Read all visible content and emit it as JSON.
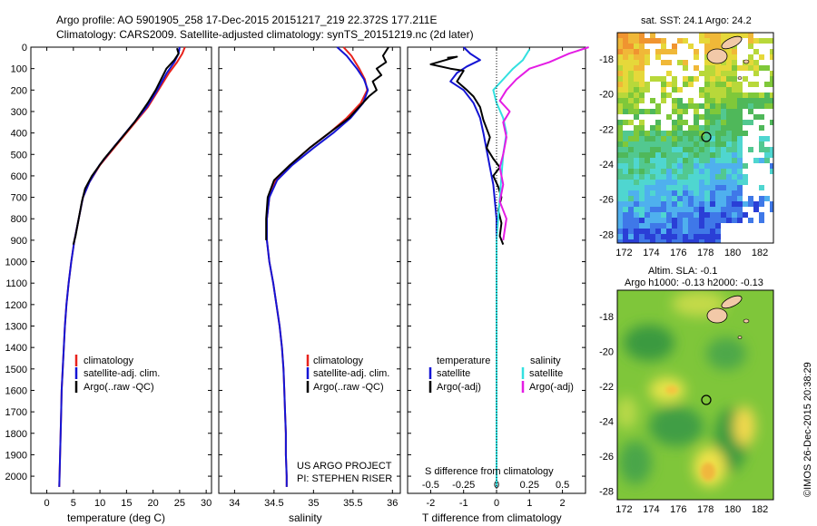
{
  "header": {
    "line1": "Argo profile: AO 5901905_258 17-Dec-2015 20151217_219 22.372S 177.211E",
    "line2": "Climatology: CARS2009. Satellite-adjusted climatology: synTS_20151219.nc (2d later)"
  },
  "credit": "©IMOS 26-Dec-2015 20:38:29",
  "project": {
    "line1": "US ARGO PROJECT",
    "line2": "PI: STEPHEN RISER"
  },
  "colors": {
    "climatology": "#e8221c",
    "satellite": "#1414d4",
    "argo": "#000000",
    "sat_s": "#33e0e0",
    "argo_s": "#e41ce4"
  },
  "chart_data": [
    {
      "type": "line",
      "panel": "temperature",
      "xlabel": "temperature (deg C)",
      "xticks": [
        "0",
        "5",
        "10",
        "15",
        "20",
        "25",
        "30"
      ],
      "xlim": [
        -3,
        31
      ],
      "ylim": [
        2080,
        0
      ],
      "yticks": [
        "0",
        "100",
        "200",
        "300",
        "400",
        "500",
        "600",
        "700",
        "800",
        "900",
        "1000",
        "1100",
        "1200",
        "1300",
        "1400",
        "1500",
        "1600",
        "1700",
        "1800",
        "1900",
        "2000"
      ],
      "legend": [
        "climatology",
        "satellite-adj. clim.",
        "Argo(..raw -QC)"
      ],
      "series": [
        {
          "name": "climatology",
          "color": "red",
          "points": [
            [
              26.0,
              0
            ],
            [
              25.5,
              30
            ],
            [
              24.5,
              70
            ],
            [
              23,
              120
            ],
            [
              21,
              200
            ],
            [
              19,
              280
            ],
            [
              16,
              370
            ],
            [
              13,
              460
            ],
            [
              10,
              550
            ],
            [
              8,
              630
            ],
            [
              6.8,
              700
            ],
            [
              6,
              800
            ],
            [
              5.2,
              900
            ],
            [
              4.6,
              1000
            ],
            [
              4.1,
              1100
            ],
            [
              3.7,
              1200
            ],
            [
              3.4,
              1300
            ],
            [
              3.2,
              1400
            ],
            [
              3.0,
              1500
            ],
            [
              2.8,
              1600
            ],
            [
              2.7,
              1700
            ],
            [
              2.6,
              1800
            ],
            [
              2.5,
              1900
            ],
            [
              2.4,
              2000
            ],
            [
              2.35,
              2050
            ]
          ]
        },
        {
          "name": "satellite-adj. clim.",
          "color": "blue",
          "points": [
            [
              25.0,
              0
            ],
            [
              24.8,
              30
            ],
            [
              24.0,
              70
            ],
            [
              22.6,
              120
            ],
            [
              20.8,
              200
            ],
            [
              18.8,
              280
            ],
            [
              15.8,
              370
            ],
            [
              12.8,
              460
            ],
            [
              9.9,
              550
            ],
            [
              8,
              630
            ],
            [
              6.8,
              700
            ],
            [
              6,
              800
            ],
            [
              5.2,
              900
            ],
            [
              4.6,
              1000
            ],
            [
              4.1,
              1100
            ],
            [
              3.7,
              1200
            ],
            [
              3.4,
              1300
            ],
            [
              3.2,
              1400
            ],
            [
              3.0,
              1500
            ],
            [
              2.8,
              1600
            ],
            [
              2.7,
              1700
            ],
            [
              2.6,
              1800
            ],
            [
              2.5,
              1900
            ],
            [
              2.4,
              2000
            ],
            [
              2.35,
              2050
            ]
          ]
        },
        {
          "name": "Argo(..raw -QC)",
          "color": "black",
          "points": [
            [
              24.5,
              5
            ],
            [
              24.8,
              30
            ],
            [
              24.0,
              60
            ],
            [
              22.5,
              100
            ],
            [
              21.5,
              150
            ],
            [
              20.5,
              200
            ],
            [
              19,
              260
            ],
            [
              16.5,
              350
            ],
            [
              13.5,
              440
            ],
            [
              10.8,
              520
            ],
            [
              8.5,
              600
            ],
            [
              7.2,
              660
            ],
            [
              6.6,
              720
            ],
            [
              6.0,
              800
            ],
            [
              5.4,
              880
            ],
            [
              5.0,
              920
            ]
          ]
        }
      ]
    },
    {
      "type": "line",
      "panel": "salinity",
      "xlabel": "salinity",
      "xticks": [
        "34",
        "34.5",
        "35",
        "35.5",
        "36"
      ],
      "xlim": [
        33.8,
        36.1
      ],
      "ylim": [
        2080,
        0
      ],
      "legend": [
        "climatology",
        "satellite-adj. clim.",
        "Argo(..raw -QC)"
      ],
      "series": [
        {
          "name": "climatology",
          "color": "red",
          "points": [
            [
              35.38,
              0
            ],
            [
              35.48,
              40
            ],
            [
              35.58,
              100
            ],
            [
              35.65,
              150
            ],
            [
              35.68,
              200
            ],
            [
              35.6,
              260
            ],
            [
              35.42,
              330
            ],
            [
              35.2,
              400
            ],
            [
              34.95,
              470
            ],
            [
              34.7,
              550
            ],
            [
              34.52,
              620
            ],
            [
              34.44,
              700
            ],
            [
              34.41,
              800
            ],
            [
              34.41,
              900
            ],
            [
              34.44,
              1000
            ],
            [
              34.49,
              1100
            ],
            [
              34.53,
              1200
            ],
            [
              34.57,
              1300
            ],
            [
              34.6,
              1400
            ],
            [
              34.62,
              1500
            ],
            [
              34.63,
              1600
            ],
            [
              34.64,
              1700
            ],
            [
              34.65,
              1800
            ],
            [
              34.65,
              1900
            ],
            [
              34.66,
              2000
            ],
            [
              34.66,
              2050
            ]
          ]
        },
        {
          "name": "satellite-adj. clim.",
          "color": "blue",
          "points": [
            [
              35.3,
              0
            ],
            [
              35.42,
              40
            ],
            [
              35.55,
              100
            ],
            [
              35.64,
              150
            ],
            [
              35.69,
              200
            ],
            [
              35.63,
              260
            ],
            [
              35.47,
              330
            ],
            [
              35.25,
              400
            ],
            [
              35.0,
              470
            ],
            [
              34.73,
              550
            ],
            [
              34.54,
              620
            ],
            [
              34.44,
              700
            ],
            [
              34.41,
              800
            ],
            [
              34.41,
              900
            ],
            [
              34.44,
              1000
            ],
            [
              34.49,
              1100
            ],
            [
              34.53,
              1200
            ],
            [
              34.57,
              1300
            ],
            [
              34.6,
              1400
            ],
            [
              34.62,
              1500
            ],
            [
              34.63,
              1600
            ],
            [
              34.64,
              1700
            ],
            [
              34.65,
              1800
            ],
            [
              34.65,
              1900
            ],
            [
              34.66,
              2000
            ],
            [
              34.66,
              2050
            ]
          ]
        },
        {
          "name": "Argo(..raw -QC)",
          "color": "black",
          "points": [
            [
              35.95,
              0
            ],
            [
              35.88,
              40
            ],
            [
              35.92,
              70
            ],
            [
              35.8,
              100
            ],
            [
              35.86,
              130
            ],
            [
              35.75,
              160
            ],
            [
              35.8,
              200
            ],
            [
              35.7,
              230
            ],
            [
              35.6,
              270
            ],
            [
              35.45,
              330
            ],
            [
              35.2,
              400
            ],
            [
              34.95,
              470
            ],
            [
              34.7,
              550
            ],
            [
              34.5,
              620
            ],
            [
              34.42,
              700
            ],
            [
              34.4,
              800
            ],
            [
              34.4,
              900
            ]
          ]
        }
      ]
    },
    {
      "type": "line",
      "panel": "difference",
      "top_xlabel": "S difference from climatology",
      "top_xticks": [
        "-0.5",
        "-0.25",
        "0",
        "0.25",
        "0.5"
      ],
      "xlabel": "T difference from climatology",
      "xticks": [
        "-2",
        "-1",
        "0",
        "1",
        "2"
      ],
      "xlim": [
        -2.7,
        2.7
      ],
      "ylim": [
        2080,
        0
      ],
      "legend_headers": [
        "temperature",
        "salinity"
      ],
      "legend": [
        "satellite",
        "Argo(-adj)",
        "satellite",
        "Argo(-adj)"
      ],
      "series": [
        {
          "name": "satellite",
          "group": "temperature",
          "color": "blue",
          "points": [
            [
              -1.0,
              0
            ],
            [
              -0.8,
              30
            ],
            [
              -0.5,
              60
            ],
            [
              -0.9,
              90
            ],
            [
              -1.2,
              120
            ],
            [
              -1.4,
              160
            ],
            [
              -1.0,
              200
            ],
            [
              -0.7,
              260
            ],
            [
              -0.5,
              330
            ],
            [
              -0.4,
              400
            ],
            [
              -0.3,
              480
            ],
            [
              -0.2,
              560
            ],
            [
              -0.1,
              640
            ],
            [
              -0.05,
              720
            ],
            [
              0,
              800
            ],
            [
              0,
              1000
            ],
            [
              0,
              1200
            ],
            [
              0,
              1400
            ],
            [
              0,
              1600
            ],
            [
              0,
              1800
            ],
            [
              0,
              2050
            ]
          ]
        },
        {
          "name": "Argo(-adj)",
          "group": "temperature",
          "color": "black",
          "points": [
            [
              -1.5,
              50
            ],
            [
              -1.2,
              45
            ],
            [
              -2.0,
              80
            ],
            [
              -1.4,
              100
            ],
            [
              -1.0,
              110
            ],
            [
              -1.2,
              160
            ],
            [
              -0.9,
              200
            ],
            [
              -0.7,
              230
            ],
            [
              -0.5,
              280
            ],
            [
              -0.4,
              340
            ],
            [
              -0.2,
              420
            ],
            [
              -0.3,
              470
            ],
            [
              -0.1,
              520
            ],
            [
              0.1,
              560
            ],
            [
              -0.1,
              600
            ],
            [
              0.05,
              650
            ],
            [
              0.15,
              700
            ],
            [
              0.05,
              760
            ],
            [
              0.15,
              820
            ],
            [
              0.1,
              880
            ],
            [
              0.2,
              920
            ]
          ]
        },
        {
          "name": "satellite",
          "group": "salinity",
          "color": "cyan",
          "points": [
            [
              1.0,
              10
            ],
            [
              0.8,
              60
            ],
            [
              0.5,
              100
            ],
            [
              0.2,
              150
            ],
            [
              -0.1,
              200
            ],
            [
              0.0,
              260
            ],
            [
              0.2,
              330
            ],
            [
              0.3,
              400
            ],
            [
              0.2,
              500
            ],
            [
              0.15,
              600
            ],
            [
              0.1,
              700
            ],
            [
              0.05,
              800
            ],
            [
              0.0,
              900
            ],
            [
              0.0,
              1000
            ],
            [
              0.0,
              1200
            ],
            [
              0.0,
              1400
            ],
            [
              0.0,
              1600
            ],
            [
              0.0,
              1800
            ],
            [
              0.0,
              2050
            ]
          ]
        },
        {
          "name": "Argo(-adj)",
          "group": "salinity",
          "color": "magenta",
          "points": [
            [
              2.8,
              0
            ],
            [
              2.2,
              30
            ],
            [
              1.6,
              70
            ],
            [
              1.0,
              100
            ],
            [
              0.6,
              150
            ],
            [
              0.3,
              200
            ],
            [
              0.1,
              250
            ],
            [
              0.4,
              300
            ],
            [
              0.2,
              350
            ],
            [
              0.3,
              420
            ],
            [
              0.2,
              500
            ],
            [
              0.1,
              560
            ],
            [
              0.2,
              640
            ],
            [
              0.1,
              720
            ],
            [
              0.3,
              800
            ],
            [
              0.2,
              900
            ]
          ]
        }
      ]
    },
    {
      "type": "heatmap",
      "panel": "sst-map",
      "title": "sat. SST: 24.1  Argo: 24.2",
      "xticks": [
        "172",
        "174",
        "176",
        "178",
        "180",
        "182"
      ],
      "yticks": [
        "-18",
        "-20",
        "-22",
        "-24",
        "-26",
        "-28"
      ],
      "xlim": [
        171.5,
        183
      ],
      "ylim": [
        -28.5,
        -16.5
      ],
      "marker": {
        "lon": 177.211,
        "lat": -22.372
      }
    },
    {
      "type": "heatmap",
      "panel": "sla-map",
      "title": "Altim. SLA: -0.1",
      "subtitle": "Argo h1000: -0.13  h2000: -0.13",
      "xticks": [
        "172",
        "174",
        "176",
        "178",
        "180",
        "182"
      ],
      "yticks": [
        "-18",
        "-20",
        "-22",
        "-24",
        "-26",
        "-28"
      ],
      "xlim": [
        171.5,
        183
      ],
      "ylim": [
        -28.5,
        -16.5
      ],
      "marker": {
        "lon": 177.211,
        "lat": -22.372
      }
    }
  ]
}
